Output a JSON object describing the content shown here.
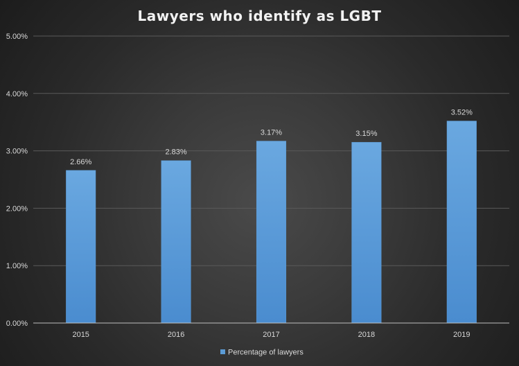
{
  "chart_data": {
    "type": "bar",
    "title": "Lawyers who identify as LGBT",
    "categories": [
      "2015",
      "2016",
      "2017",
      "2018",
      "2019"
    ],
    "series": [
      {
        "name": "Percentage of lawyers",
        "values": [
          2.66,
          2.83,
          3.17,
          3.15,
          3.52
        ]
      }
    ],
    "data_labels": [
      "2.66%",
      "2.83%",
      "3.17%",
      "3.15%",
      "3.52%"
    ],
    "yticks": [
      "0.00%",
      "1.00%",
      "2.00%",
      "3.00%",
      "4.00%",
      "5.00%"
    ],
    "ylim": [
      0,
      5
    ],
    "grid": true,
    "legend_position": "bottom",
    "colors": {
      "bar": "#5b9bd5",
      "background": "#2e2e2e"
    }
  }
}
